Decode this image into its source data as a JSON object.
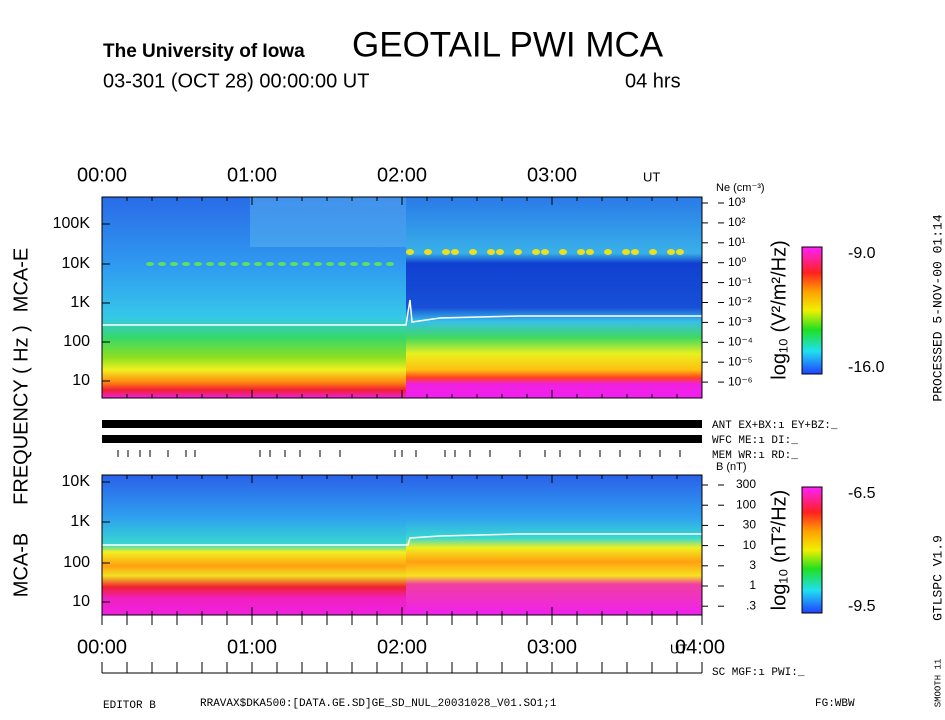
{
  "header": {
    "institution": "The University of Iowa",
    "title": "GEOTAIL PWI MCA",
    "date_line": "03-301 (OCT 28) 00:00:00 UT",
    "duration": "04 hrs"
  },
  "time_axis_top": {
    "labels": [
      "00:00",
      "01:00",
      "02:00",
      "03:00"
    ],
    "unit": "UT"
  },
  "time_axis_bottom": {
    "labels": [
      "00:00",
      "01:00",
      "02:00",
      "03:00",
      "04:00"
    ],
    "unit": "UT"
  },
  "axis_labels": {
    "upper": "MCA-E",
    "middle": "FREQUENCY ( Hz )",
    "lower": "MCA-B"
  },
  "mca_e": {
    "freq_labels": [
      "100K",
      "10K",
      "1K",
      "100",
      "10"
    ],
    "ne_title": "Ne (cm⁻³)",
    "ne_labels": [
      "10³",
      "10²",
      "10¹",
      "10⁰",
      "10⁻¹",
      "10⁻²",
      "10⁻³",
      "10⁻⁴",
      "10⁻⁵",
      "10⁻⁶"
    ],
    "colorbar": {
      "label": "log₁₀ (V²/m²/Hz)",
      "max": "-9.0",
      "min": "-16.0"
    }
  },
  "status_lines": [
    "ANT EX+BX:ı EY+BZ:_",
    "WFC ME:ı      DI:_",
    "MEM WR:ı      RD:_"
  ],
  "mca_b": {
    "freq_labels": [
      "10K",
      "1K",
      "100",
      "10"
    ],
    "b_title": "B (nT)",
    "b_labels": [
      "300",
      "100",
      "30",
      "10",
      "3",
      "1",
      ".3"
    ],
    "colorbar": {
      "label": "log₁₀ (nT²/Hz)",
      "max": "-6.5",
      "min": "-9.5"
    }
  },
  "sc_line": "SC MGF:ı     PWI:_",
  "footer": {
    "editor": "EDITOR B",
    "file": "RRAVAX$DKA500:[DATA.GE.SD]GE_SD_NUL_20031028_V01.SO1;1",
    "fg": "FG:WBW"
  },
  "side": {
    "processed": "PROCESSED  5-NOV-00  01:14",
    "version": "GTLSPC   V1.9",
    "smooth": "SMOOTH 11"
  }
}
